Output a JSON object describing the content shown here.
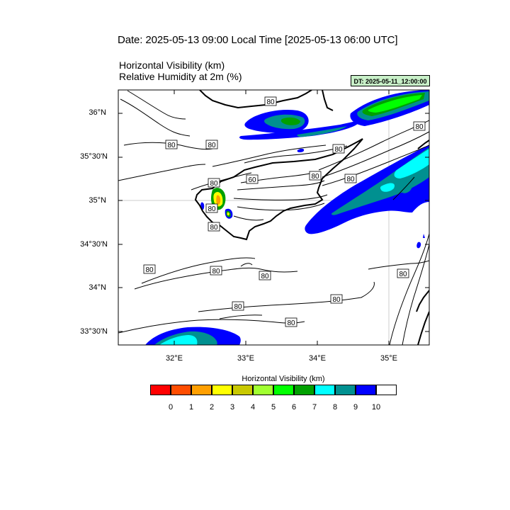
{
  "title": "Date: 2025-05-13  09:00 Local Time [2025-05-13  06:00 UTC]",
  "subtitle_1": "Horizontal Visibility   (km)",
  "subtitle_2": "Relative Humidity at 2m   (%)",
  "dt_badge": "DT: 2025-05-11_12:00:00",
  "map": {
    "region": "Cyprus",
    "lat_labels": [
      "36°N",
      "35°30'N",
      "35°N",
      "34°30'N",
      "34°N",
      "33°30'N"
    ],
    "lon_labels": [
      "32°E",
      "33°E",
      "34°E",
      "35°E"
    ],
    "contour_labels": [
      "80",
      "80",
      "80",
      "80",
      "80",
      "80",
      "80",
      "60",
      "80",
      "80",
      "80",
      "80",
      "80",
      "80",
      "80",
      "80",
      "80",
      "80"
    ]
  },
  "colorbar": {
    "title": "Horizontal Visibility  (km)",
    "ticks": [
      "0",
      "1",
      "2",
      "3",
      "4",
      "5",
      "6",
      "7",
      "8",
      "9",
      "10"
    ],
    "colors": [
      "#ff0000",
      "#ff4d00",
      "#ff9f00",
      "#ffff00",
      "#c8c800",
      "#a0ff30",
      "#00ff00",
      "#00a000",
      "#00ffff",
      "#009090",
      "#0000ff",
      "#ffffff"
    ]
  }
}
